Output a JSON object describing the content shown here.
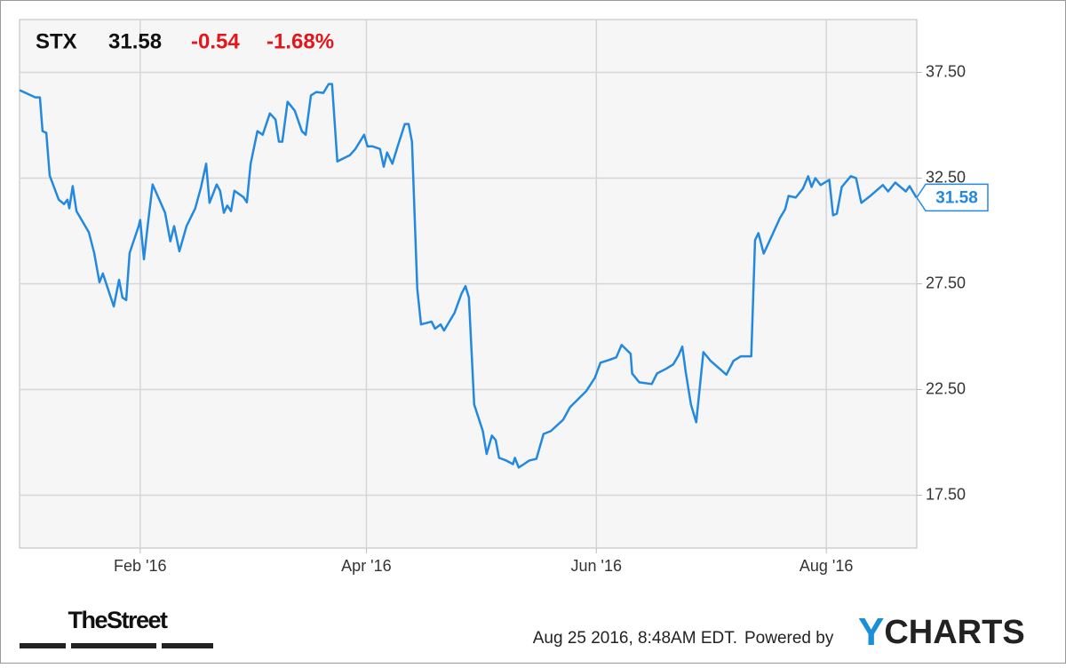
{
  "chart_data": {
    "type": "line",
    "title": "STX",
    "change": "-0.54",
    "change_percent": "-1.68%",
    "x": [
      0,
      4.2,
      5.4,
      6.1,
      7.1,
      8,
      10.4,
      11.8,
      12.7,
      13.2,
      14.1,
      15.1,
      18.4,
      19.8,
      21.2,
      22.1,
      25,
      26.4,
      27.3,
      28.3,
      29.2,
      31.6,
      32,
      33,
      33.9,
      35.3,
      38.6,
      40,
      41,
      42.4,
      44.3,
      46.6,
      48.1,
      49.5,
      50.4,
      52.3,
      53.2,
      54.2,
      55.1,
      56.1,
      57,
      59.4,
      60.3,
      61.3,
      63.1,
      64.5,
      66.4,
      67.9,
      68.8,
      69.7,
      71.1,
      73,
      74.9,
      75.9,
      77.3,
      78.7,
      80.6,
      82,
      82.9,
      84.3,
      87.6,
      89.1,
      91.4,
      92.3,
      93.7,
      95.6,
      96.6,
      97.5,
      98.9,
      100.3,
      102.2,
      103.2,
      104.1,
      105.5,
      106.5,
      109.3,
      110.2,
      111.7,
      112.6,
      115.4,
      117.3,
      118.3,
      119.2,
      120.6,
      122.9,
      123.9,
      125.3,
      126.3,
      127.2,
      129.1,
      130.9,
      131.4,
      132.4,
      133.8,
      135.2,
      137.1,
      139,
      140.9,
      144.2,
      146,
      150.3,
      152.6,
      154.1,
      156.4,
      158.3,
      159.7,
      162.1,
      162.5,
      164.4,
      167.7,
      169.1,
      171.5,
      173.4,
      174.8,
      175.8,
      176.7,
      178.1,
      179.5,
      181.4,
      183.3,
      187.5,
      189.4,
      191.3,
      194.1,
      195.1,
      196,
      197.4,
      200.3,
      201.7,
      203.1,
      204,
      205.9,
      207.8,
      209.2,
      210.1,
      211.1,
      212.5,
      214.8,
      215.8,
      216.8,
      218.1,
      220.5,
      221.9,
      223.3,
      225.7,
      229,
      230.4,
      232.3,
      235.1,
      236.1,
      237.9
    ],
    "series": [
      {
        "color": "#2389e0",
        "values": [
          36.66,
          36.32,
          36.32,
          34.72,
          34.64,
          32.62,
          31.48,
          31.27,
          31.48,
          31.07,
          32.12,
          30.94,
          29.93,
          28.96,
          27.57,
          27.99,
          26.43,
          27.69,
          26.85,
          26.73,
          28.96,
          30.23,
          30.52,
          28.66,
          30.1,
          32.2,
          30.86,
          29.51,
          30.23,
          29.04,
          30.23,
          31.07,
          32.04,
          33.18,
          31.33,
          32.2,
          31.9,
          30.86,
          31.2,
          30.94,
          31.9,
          31.6,
          31.35,
          33.18,
          34.72,
          34.55,
          35.56,
          35.27,
          34.22,
          34.22,
          36.11,
          35.69,
          34.72,
          34.55,
          36.41,
          36.57,
          36.53,
          36.95,
          36.95,
          33.29,
          33.58,
          33.88,
          34.55,
          34,
          34,
          33.88,
          33.04,
          33.71,
          33.18,
          34,
          35.06,
          35.06,
          34.22,
          27.27,
          25.58,
          25.71,
          25.38,
          25.58,
          25.29,
          26.13,
          27.06,
          27.39,
          26.85,
          21.79,
          20.53,
          19.45,
          20.32,
          20.11,
          19.27,
          19.14,
          18.97,
          19.27,
          18.81,
          18.97,
          19.14,
          19.22,
          20.4,
          20.53,
          21.07,
          21.66,
          22.42,
          23.05,
          23.77,
          23.9,
          24.02,
          24.61,
          24.19,
          23.26,
          22.84,
          22.76,
          23.26,
          23.48,
          23.69,
          24.11,
          24.53,
          23.35,
          21.79,
          20.95,
          24.27,
          23.86,
          23.2,
          23.86,
          24.07,
          24.07,
          29.56,
          29.9,
          28.93,
          30.06,
          30.61,
          31.03,
          31.66,
          31.58,
          32,
          32.59,
          32.08,
          32.5,
          32.17,
          32.42,
          30.74,
          30.82,
          32.08,
          32.59,
          32.5,
          31.33,
          31.66,
          32.17,
          31.87,
          32.29,
          31.87,
          32.12,
          31.58
        ]
      }
    ],
    "xlim": [
      0,
      238
    ],
    "xticks": [
      {
        "value": 32,
        "label": "Feb '16"
      },
      {
        "value": 92,
        "label": "Apr '16"
      },
      {
        "value": 153,
        "label": "Jun '16"
      },
      {
        "value": 214,
        "label": "Aug '16"
      }
    ],
    "ylim": [
      15,
      40
    ],
    "yticks": [
      {
        "value": 17.5,
        "label": "17.50"
      },
      {
        "value": 22.5,
        "label": "22.50"
      },
      {
        "value": 27.5,
        "label": "27.50"
      },
      {
        "value": 32.5,
        "label": "32.50"
      },
      {
        "value": 37.5,
        "label": "37.50"
      }
    ],
    "grid": true
  },
  "footer": {
    "source": "TheStreet",
    "timestamp": "Aug 25 2016, 8:48AM EDT.",
    "powered": "Powered by",
    "brand": "YCHARTS"
  }
}
